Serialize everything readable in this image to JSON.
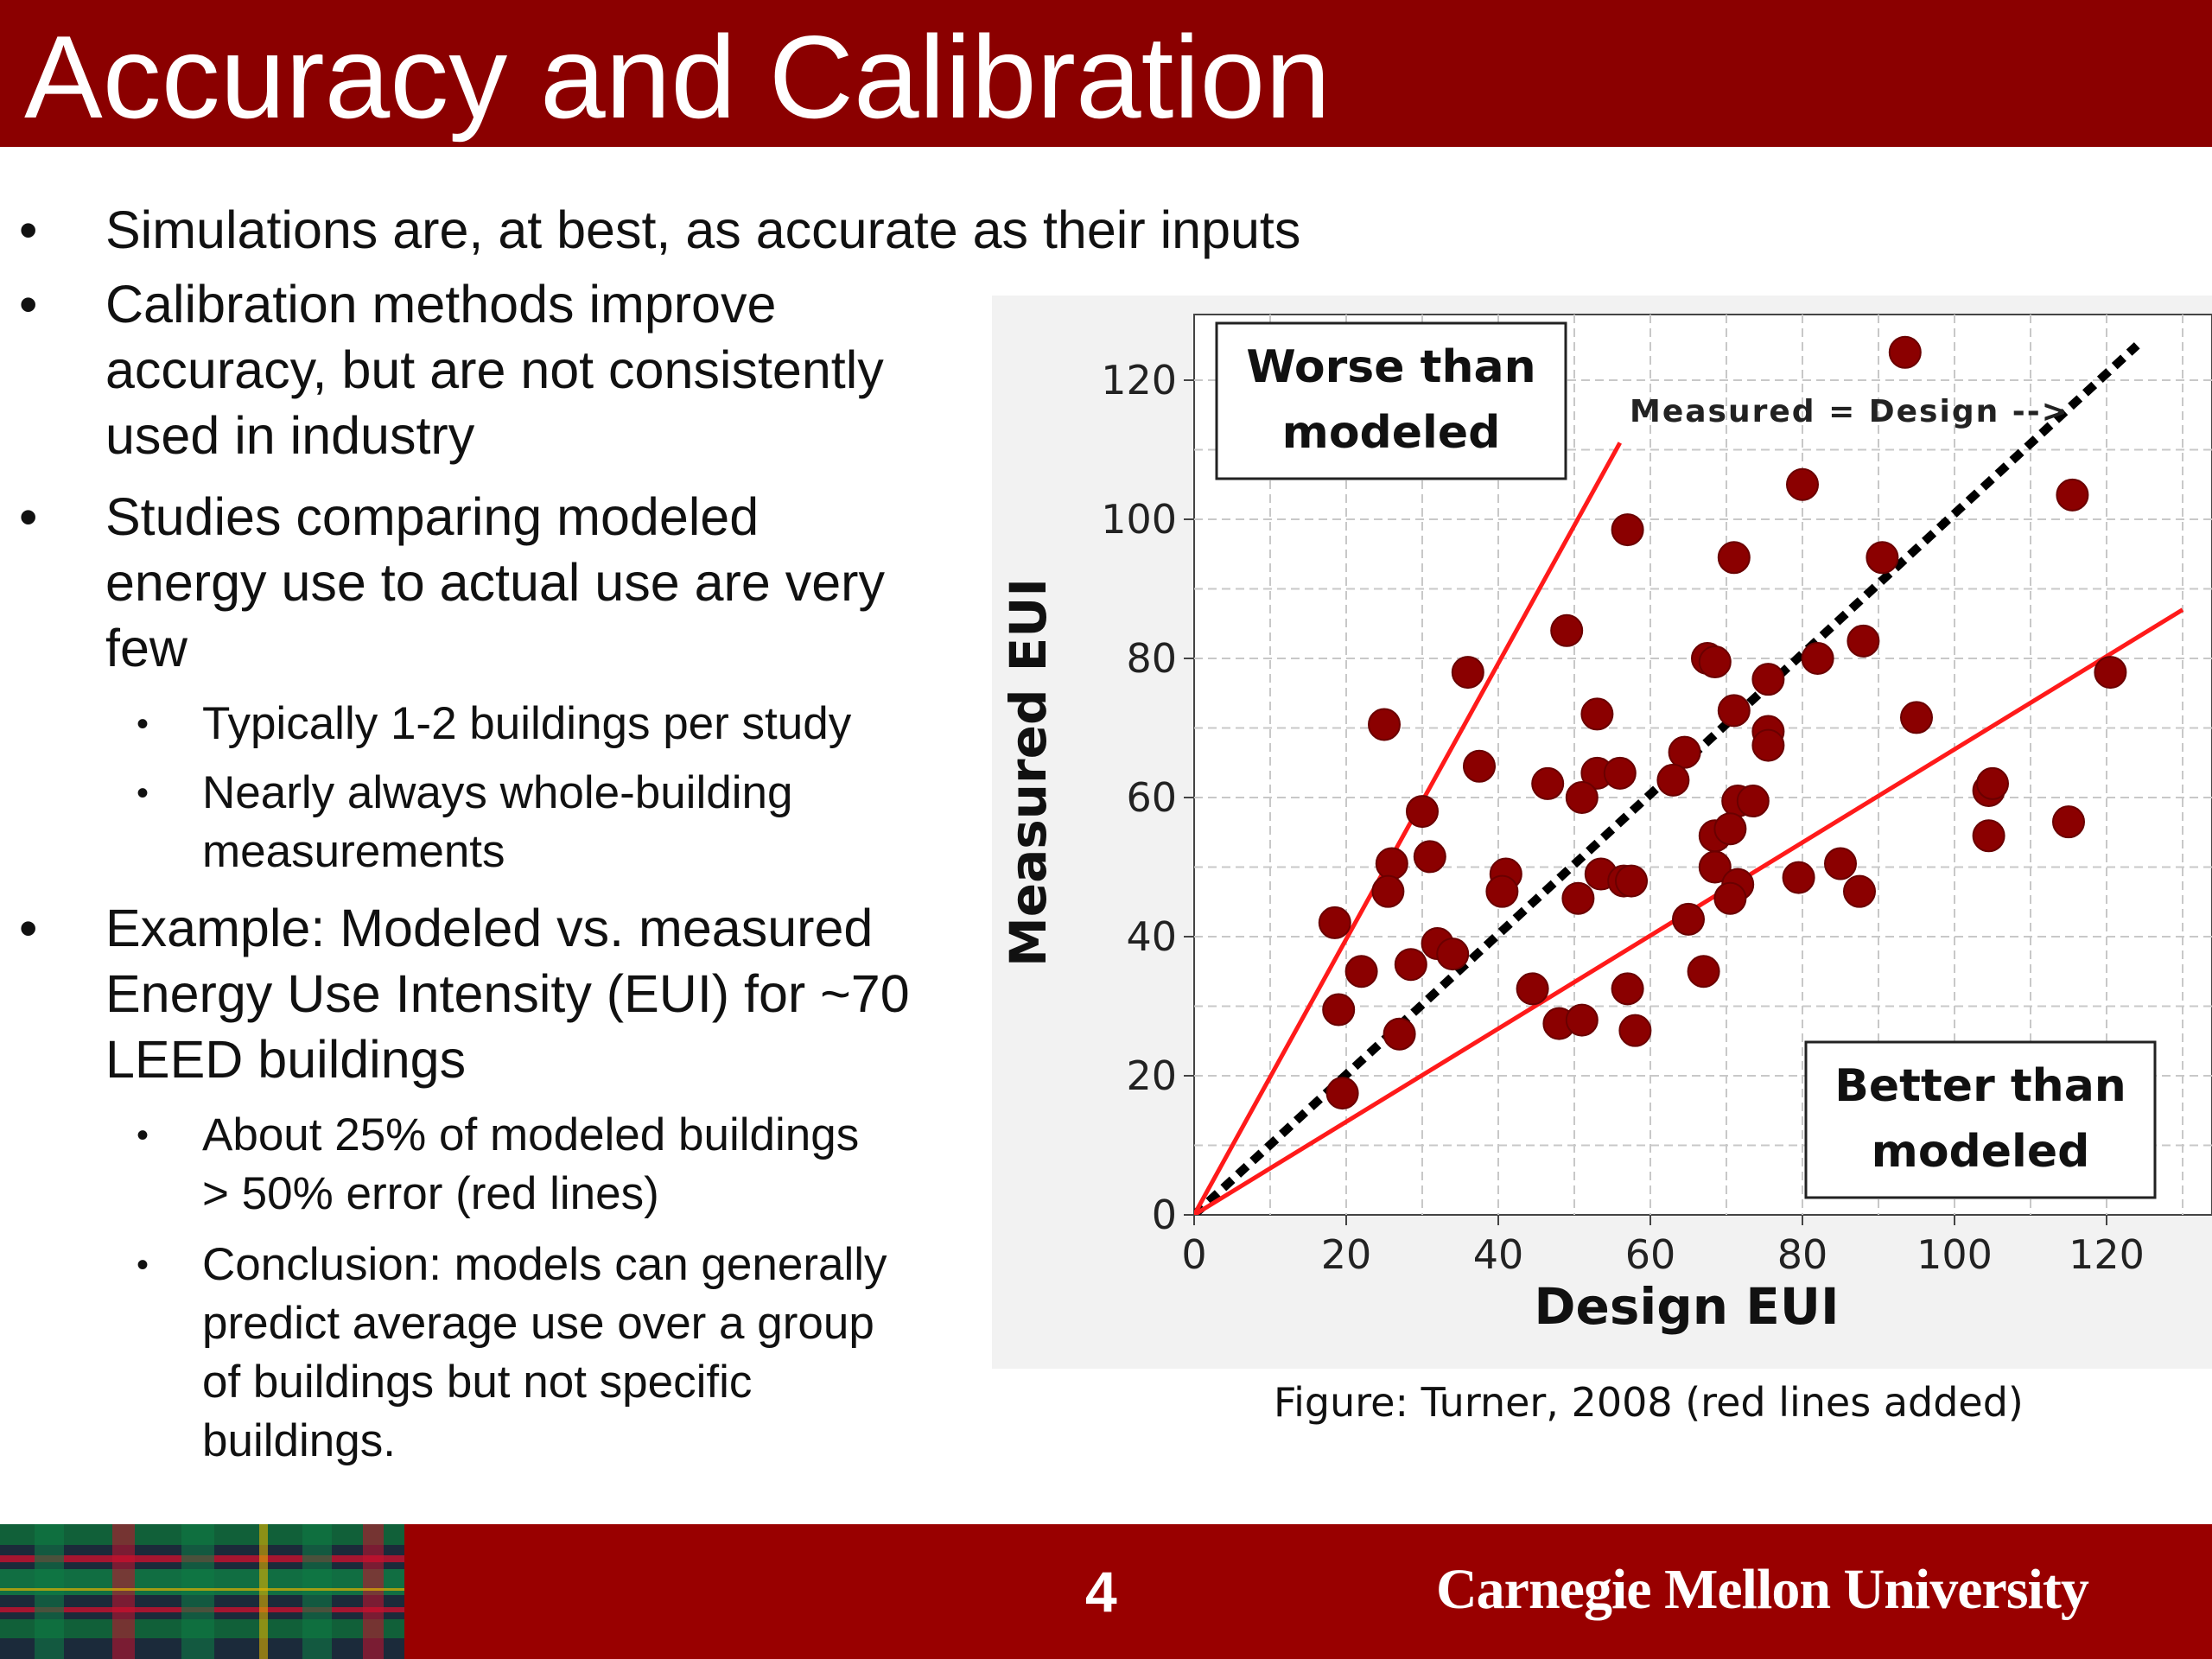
{
  "slide": {
    "title": "Accuracy and Calibration",
    "page_number": "4",
    "university": "Carnegie Mellon University",
    "colors": {
      "title_bar": "#8b0000",
      "footer": "#990000",
      "points": "#8b0000",
      "red_lines": "#ff1a1a"
    }
  },
  "bullets": [
    {
      "lines": [
        "Simulations are, at best, as accurate as their inputs"
      ]
    },
    {
      "lines": [
        "Calibration methods improve",
        "accuracy, but are not consistently",
        "used in industry"
      ]
    },
    {
      "lines": [
        "Studies comparing modeled",
        "energy use to actual use are very",
        "few"
      ]
    },
    {
      "lines": [
        "Typically 1-2 buildings per study"
      ]
    },
    {
      "lines": [
        "Nearly always whole-building",
        "measurements"
      ]
    },
    {
      "lines": [
        "Example: Modeled vs. measured",
        "Energy Use Intensity (EUI) for ~70",
        "LEED buildings"
      ]
    },
    {
      "lines": [
        "About 25% of modeled buildings",
        "> 50% error (red lines)"
      ]
    },
    {
      "lines": [
        "Conclusion: models can generally",
        "predict average use over a group",
        "of buildings but not specific",
        "buildings."
      ]
    }
  ],
  "caption": "Figure: Turner, 2008 (red lines added)",
  "chart_data": {
    "type": "scatter",
    "xlabel": "Design EUI",
    "ylabel": "Measured EUI",
    "xlim": [
      0,
      130
    ],
    "ylim": [
      0,
      130
    ],
    "xticks": [
      "0",
      "20",
      "40",
      "60",
      "80",
      "100",
      "120"
    ],
    "yticks": [
      "0",
      "20",
      "40",
      "60",
      "80",
      "100",
      "120"
    ],
    "grid": true,
    "annotations": {
      "worse": [
        "Worse than",
        "modeled"
      ],
      "better": [
        "Better than",
        "modeled"
      ],
      "diagonal": "Measured = Design  -->"
    },
    "lines": [
      {
        "type": "dashed",
        "color": "#000000",
        "slope": 1.0
      },
      {
        "type": "solid",
        "color": "#ff1a1a",
        "slope": 2.0
      },
      {
        "type": "solid",
        "color": "#ff1a1a",
        "slope": 0.667
      }
    ],
    "points": [
      [
        93.5,
        124
      ],
      [
        57,
        98.5
      ],
      [
        80,
        105
      ],
      [
        115.5,
        103.5
      ],
      [
        71,
        94.5
      ],
      [
        90.5,
        94.5
      ],
      [
        49,
        84
      ],
      [
        36,
        78
      ],
      [
        67.5,
        80
      ],
      [
        68.5,
        79.5
      ],
      [
        82,
        80
      ],
      [
        88,
        82.5
      ],
      [
        75.5,
        77
      ],
      [
        120.5,
        78
      ],
      [
        71,
        72.5
      ],
      [
        53,
        72
      ],
      [
        25,
        70.5
      ],
      [
        95,
        71.5
      ],
      [
        75.5,
        69.5
      ],
      [
        75.5,
        67.5
      ],
      [
        37.5,
        64.5
      ],
      [
        53,
        63.5
      ],
      [
        56,
        63.5
      ],
      [
        46.5,
        62
      ],
      [
        51,
        60
      ],
      [
        64.5,
        66.5
      ],
      [
        63,
        62.5
      ],
      [
        71.5,
        59.5
      ],
      [
        73.5,
        59.5
      ],
      [
        104.5,
        61
      ],
      [
        105,
        62
      ],
      [
        30,
        58
      ],
      [
        115,
        56.5
      ],
      [
        68.5,
        54.5
      ],
      [
        70.5,
        55.5
      ],
      [
        104.5,
        54.5
      ],
      [
        26,
        50.5
      ],
      [
        31,
        51.5
      ],
      [
        41,
        49
      ],
      [
        53.5,
        49
      ],
      [
        56.5,
        48
      ],
      [
        57.5,
        48
      ],
      [
        68.5,
        50
      ],
      [
        71.5,
        47.5
      ],
      [
        79.5,
        48.5
      ],
      [
        85,
        50.5
      ],
      [
        87.5,
        46.5
      ],
      [
        25.5,
        46.5
      ],
      [
        40.5,
        46.5
      ],
      [
        50.5,
        45.5
      ],
      [
        70.5,
        45.5
      ],
      [
        65,
        42.5
      ],
      [
        18.5,
        42
      ],
      [
        32,
        39
      ],
      [
        34,
        37.5
      ],
      [
        28.5,
        36
      ],
      [
        22,
        35
      ],
      [
        67,
        35
      ],
      [
        44.5,
        32.5
      ],
      [
        57,
        32.5
      ],
      [
        19,
        29.5
      ],
      [
        48,
        27.5
      ],
      [
        51,
        28
      ],
      [
        58,
        26.5
      ],
      [
        27,
        26
      ],
      [
        19.5,
        17.5
      ]
    ]
  }
}
